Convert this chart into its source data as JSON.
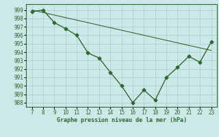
{
  "hours": [
    7,
    8,
    9,
    10,
    11,
    12,
    13,
    14,
    15,
    16,
    17,
    18,
    19,
    20,
    21,
    22,
    23
  ],
  "pressure": [
    998.8,
    999.0,
    997.5,
    996.8,
    996.0,
    993.9,
    993.3,
    991.6,
    990.0,
    988.0,
    989.5,
    988.3,
    991.0,
    992.2,
    993.5,
    992.8,
    995.2
  ],
  "trend": [
    999.0,
    998.7,
    998.4,
    998.1,
    997.8,
    997.5,
    997.2,
    996.9,
    996.6,
    996.3,
    996.0,
    995.7,
    995.4,
    995.1,
    994.8,
    994.5,
    994.2
  ],
  "line_color": "#2d6a2d",
  "bg_color": "#cce8e8",
  "grid_color": "#aacccc",
  "xlabel": "Graphe pression niveau de la mer (hPa)",
  "ylim": [
    987.5,
    999.7
  ],
  "yticks": [
    988,
    989,
    990,
    991,
    992,
    993,
    994,
    995,
    996,
    997,
    998,
    999
  ],
  "xlim": [
    6.5,
    23.5
  ],
  "xticks": [
    7,
    8,
    9,
    10,
    11,
    12,
    13,
    14,
    15,
    16,
    17,
    18,
    19,
    20,
    21,
    22,
    23
  ]
}
